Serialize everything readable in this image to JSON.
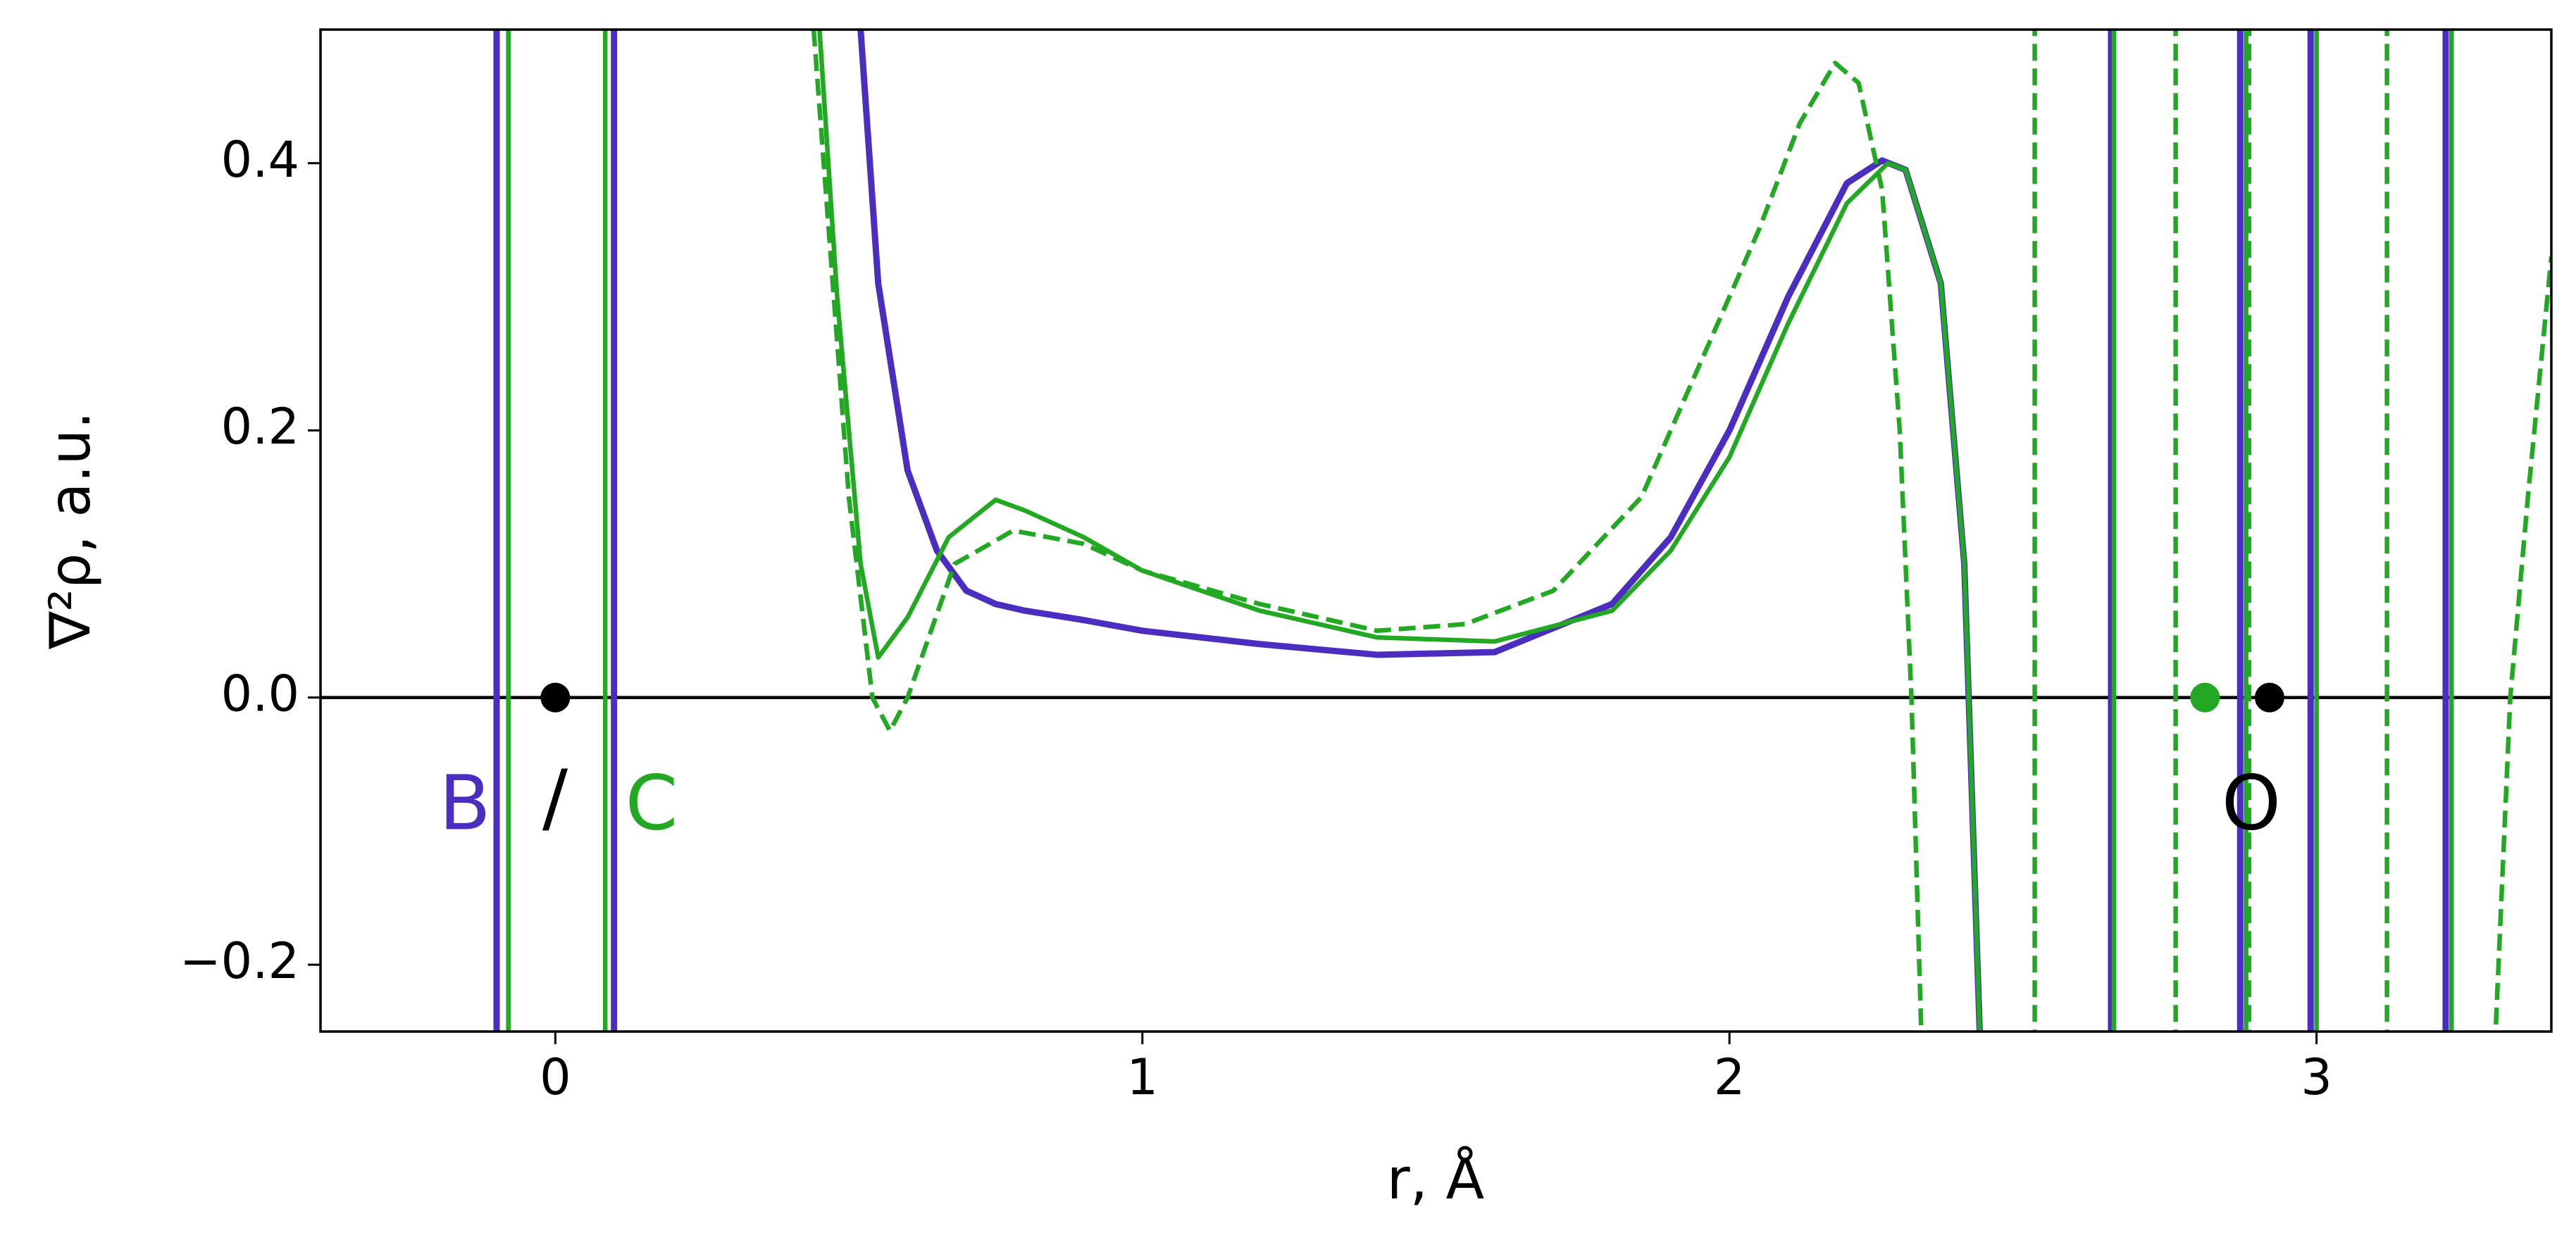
{
  "chart_data": {
    "type": "line",
    "xlabel": "r, Å",
    "ylabel": "∇²ρ, a.u.",
    "xlim": [
      -0.4,
      3.4
    ],
    "ylim": [
      -0.25,
      0.5
    ],
    "xticks": [
      0,
      1,
      2,
      3
    ],
    "yticks": [
      {
        "value": -0.2,
        "label": "−0.2"
      },
      {
        "value": 0,
        "label": "0.0"
      },
      0.2,
      0.4
    ],
    "hline": 0,
    "series": [
      {
        "color": "#4b2dbf",
        "dash": false,
        "x": [
          -0.1,
          -0.1,
          0,
          0.1,
          0.1,
          0.3,
          0.52,
          0.55,
          0.6,
          0.65,
          0.7,
          0.75,
          0.8,
          0.9,
          1.0,
          1.2,
          1.4,
          1.6,
          1.8,
          1.9,
          2.0,
          2.1,
          2.2,
          2.26,
          2.3,
          2.36,
          2.4,
          2.43,
          2.5,
          2.65,
          2.65,
          2.75,
          2.87,
          2.87,
          2.93,
          2.99,
          2.99,
          3.1,
          3.22,
          3.22
        ],
        "values": [
          0.6,
          -0.3,
          null,
          0.6,
          -0.3,
          null,
          0.5,
          0.31,
          0.17,
          0.11,
          0.08,
          0.07,
          0.065,
          0.058,
          0.05,
          0.04,
          0.032,
          0.034,
          0.07,
          0.12,
          0.2,
          0.3,
          0.385,
          0.402,
          0.395,
          0.31,
          0.1,
          -0.3,
          null,
          0.6,
          -0.3,
          null,
          0.6,
          -0.3,
          null,
          0.6,
          -0.3,
          null,
          0.6,
          -0.3
        ]
      },
      {
        "color": "#22a822",
        "dash": false,
        "x": [
          -0.08,
          -0.08,
          0,
          0.085,
          0.085,
          0.3,
          0.45,
          0.48,
          0.52,
          0.55,
          0.6,
          0.67,
          0.75,
          0.8,
          0.9,
          1.0,
          1.2,
          1.4,
          1.6,
          1.8,
          1.9,
          2.0,
          2.1,
          2.2,
          2.27,
          2.3,
          2.36,
          2.4,
          2.43,
          2.5,
          2.655,
          2.655,
          2.75,
          2.88,
          2.88,
          2.95,
          3.0,
          3.0,
          3.1,
          3.23,
          3.23
        ],
        "values": [
          0.6,
          -0.3,
          null,
          0.6,
          -0.3,
          null,
          0.5,
          0.3,
          0.1,
          0.03,
          0.06,
          0.12,
          0.148,
          0.14,
          0.12,
          0.095,
          0.065,
          0.045,
          0.042,
          0.065,
          0.11,
          0.18,
          0.28,
          0.37,
          0.4,
          0.395,
          0.31,
          0.1,
          -0.3,
          null,
          0.6,
          -0.3,
          null,
          0.6,
          -0.3,
          null,
          0.6,
          -0.3,
          null,
          0.6,
          -0.3
        ]
      },
      {
        "color": "#22a822",
        "dash": true,
        "x": [
          0.44,
          0.5,
          0.54,
          0.57,
          0.6,
          0.68,
          0.78,
          0.9,
          1.0,
          1.2,
          1.4,
          1.55,
          1.7,
          1.85,
          1.95,
          2.05,
          2.12,
          2.18,
          2.22,
          2.26,
          2.29,
          2.31,
          2.33,
          2.4,
          2.52,
          2.52,
          2.65,
          2.76,
          2.76,
          2.82,
          2.885,
          2.885,
          3.0,
          3.12,
          3.12,
          3.2,
          3.3,
          3.33,
          3.36,
          3.4
        ],
        "values": [
          0.5,
          0.15,
          0.0,
          -0.025,
          0.0,
          0.1,
          0.125,
          0.115,
          0.095,
          0.07,
          0.05,
          0.055,
          0.08,
          0.15,
          0.25,
          0.35,
          0.43,
          0.475,
          0.46,
          0.38,
          0.2,
          0.0,
          -0.3,
          null,
          0.6,
          -0.3,
          null,
          0.6,
          -0.3,
          null,
          0.6,
          -0.3,
          null,
          0.6,
          -0.3,
          null,
          -0.3,
          0.0,
          0.15,
          0.33
        ]
      }
    ],
    "points": [
      {
        "x": 0,
        "y": 0,
        "color": "#000000"
      },
      {
        "x": 2.81,
        "y": 0,
        "color": "#22a822"
      },
      {
        "x": 2.92,
        "y": 0,
        "color": "#000000"
      }
    ],
    "annotations": [
      {
        "text": "B",
        "color": "#4b2dbf"
      },
      {
        "text": "/",
        "color": "#000000"
      },
      {
        "text": "C",
        "color": "#22a822"
      },
      {
        "text": "O",
        "color": "#000000"
      }
    ]
  }
}
